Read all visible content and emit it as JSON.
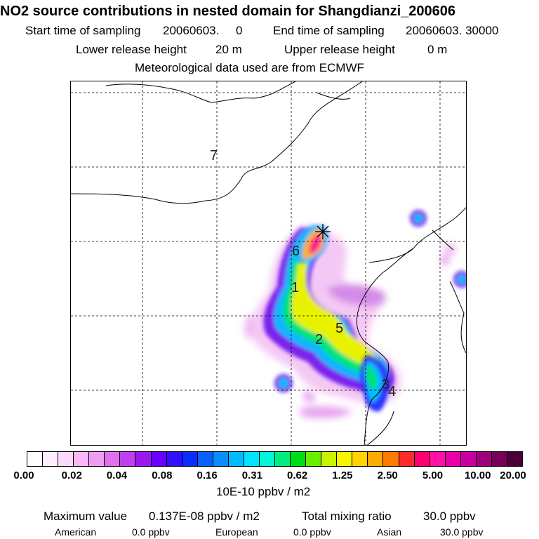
{
  "title": "NO2 source contributions in nested domain for Shangdianzi_200606",
  "header": {
    "start_label": "Start time of sampling",
    "start_value": "20060603.     0",
    "end_label": "End time of sampling",
    "end_value": "20060603. 30000",
    "lower_label": "Lower release height",
    "lower_value": "20 m",
    "upper_label": "Upper release height",
    "upper_value": "0 m",
    "met_text": "Meteorological data used are from ECMWF"
  },
  "map": {
    "grid": "dashed",
    "region_labels": [
      "7",
      "6",
      "1",
      "5",
      "2",
      "3",
      "4"
    ],
    "receptor_marker": "star-icon"
  },
  "colorbar": {
    "colors": [
      "#ffffff",
      "#ffeeff",
      "#fcd9fc",
      "#f9b9f9",
      "#f09cf5",
      "#e070f0",
      "#c040f0",
      "#9a18f0",
      "#6a00ff",
      "#3010ff",
      "#0a2dff",
      "#0a60ff",
      "#0a8eff",
      "#00bcff",
      "#00e4ff",
      "#00f6d6",
      "#00ee80",
      "#00dc18",
      "#6aee00",
      "#c8f400",
      "#f6f600",
      "#ffd200",
      "#ffaa00",
      "#ff7a00",
      "#ff2a2a",
      "#ff0070",
      "#ff10a8",
      "#e800a8",
      "#c800a0",
      "#a0007a",
      "#760058",
      "#4a0036"
    ],
    "tick_labels": [
      "0.00",
      "0.02",
      "0.04",
      "0.08",
      "0.16",
      "0.31",
      "0.62",
      "1.25",
      "2.50",
      "5.00",
      "10.00",
      "20.00"
    ],
    "units": "10E-10 ppbv / m2"
  },
  "footer": {
    "max_label": "Maximum value",
    "max_value": "0.137E-08 ppbv / m2",
    "total_label": "Total mixing ratio",
    "total_value": "30.0 ppbv",
    "american_label": "American",
    "american_value": "0.0 ppbv",
    "european_label": "European",
    "european_value": "0.0 ppbv",
    "asian_label": "Asian",
    "asian_value": "30.0 ppbv"
  }
}
